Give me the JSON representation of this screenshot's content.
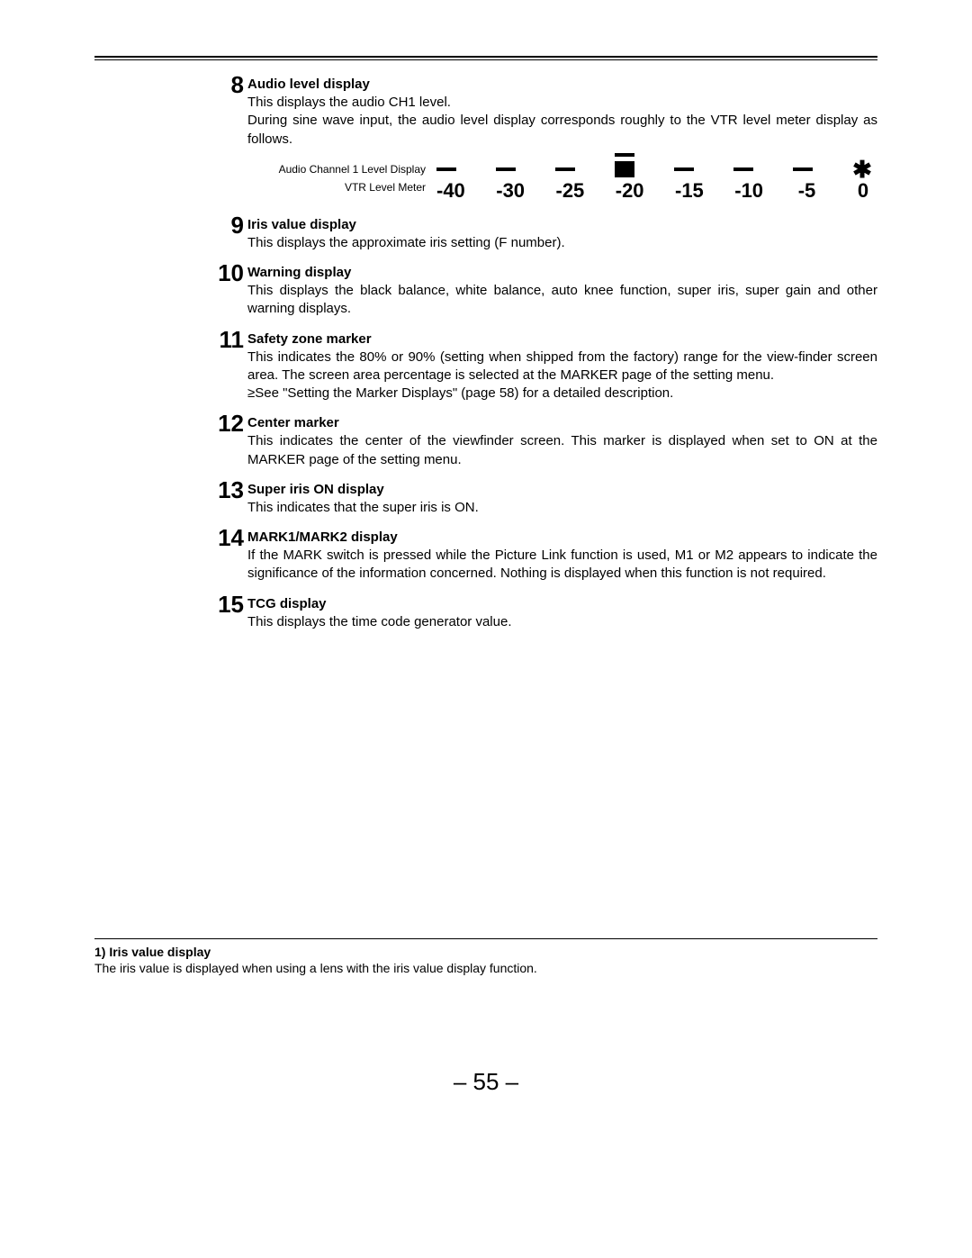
{
  "items": [
    {
      "num": "8",
      "title": "Audio level display",
      "body": "This displays the audio CH1 level.\nDuring sine wave input, the audio level display corresponds roughly to the VTR level meter display as follows."
    },
    {
      "num": "9",
      "title": "Iris value display",
      "body": "This displays the approximate iris setting (F number)."
    },
    {
      "num": "10",
      "title": "Warning display",
      "body": "This displays the black balance, white balance, auto knee function, super iris, super gain and other warning displays."
    },
    {
      "num": "11",
      "title": "Safety zone marker",
      "body": "This indicates the 80% or 90% (setting when shipped from the factory) range for the view-finder screen area. The screen area percentage is selected at the MARKER page of the setting menu.\n≥See \"Setting the Marker Displays\" (page 58) for a detailed description."
    },
    {
      "num": "12",
      "title": "Center marker",
      "body": "This indicates the center of the viewfinder screen. This marker is displayed when set to ON at the MARKER page of the setting menu."
    },
    {
      "num": "13",
      "title": "Super iris ON display",
      "body": "This indicates that the super iris is ON."
    },
    {
      "num": "14",
      "title": "MARK1/MARK2 display",
      "body": "If the MARK switch is pressed while the Picture Link function is used, M1 or M2 appears to indicate the significance of the information concerned. Nothing is displayed when this function is not required."
    },
    {
      "num": "15",
      "title": "TCG display",
      "body": "This displays the time code generator value."
    }
  ],
  "level": {
    "label1": "Audio Channel 1 Level Display",
    "label2": "VTR Level Meter",
    "scale": [
      "-40",
      "-30",
      "-25",
      "-20",
      "-15",
      "-10",
      "-5",
      "0"
    ],
    "big_index": 3,
    "star_glyph": "✱"
  },
  "footnote": {
    "title": "1) Iris value display",
    "body": "The iris value is displayed when using a lens with the iris value display function."
  },
  "page_number": "– 55 –"
}
